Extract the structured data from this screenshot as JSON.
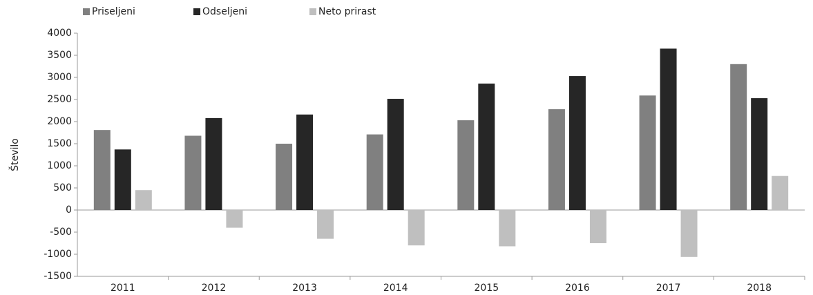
{
  "chart_data": {
    "type": "bar",
    "y_label": "Število",
    "categories": [
      "2011",
      "2012",
      "2013",
      "2014",
      "2015",
      "2016",
      "2017",
      "2018"
    ],
    "series": [
      {
        "name": "Priseljeni",
        "color": "#808080",
        "values": [
          1810,
          1680,
          1500,
          1710,
          2030,
          2280,
          2590,
          3300
        ]
      },
      {
        "name": "Odseljeni",
        "color": "#262626",
        "values": [
          1370,
          2080,
          2160,
          2515,
          2860,
          3030,
          3650,
          2530
        ]
      },
      {
        "name": "Neto prirast",
        "color": "#bfbfbf",
        "values": [
          450,
          -400,
          -650,
          -800,
          -820,
          -750,
          -1060,
          770
        ]
      }
    ],
    "ylim": [
      -1500,
      4000
    ],
    "yticks": [
      -1500,
      -1000,
      -500,
      0,
      500,
      1000,
      1500,
      2000,
      2500,
      3000,
      3500,
      4000
    ],
    "grid": false,
    "legend": "top-left"
  }
}
